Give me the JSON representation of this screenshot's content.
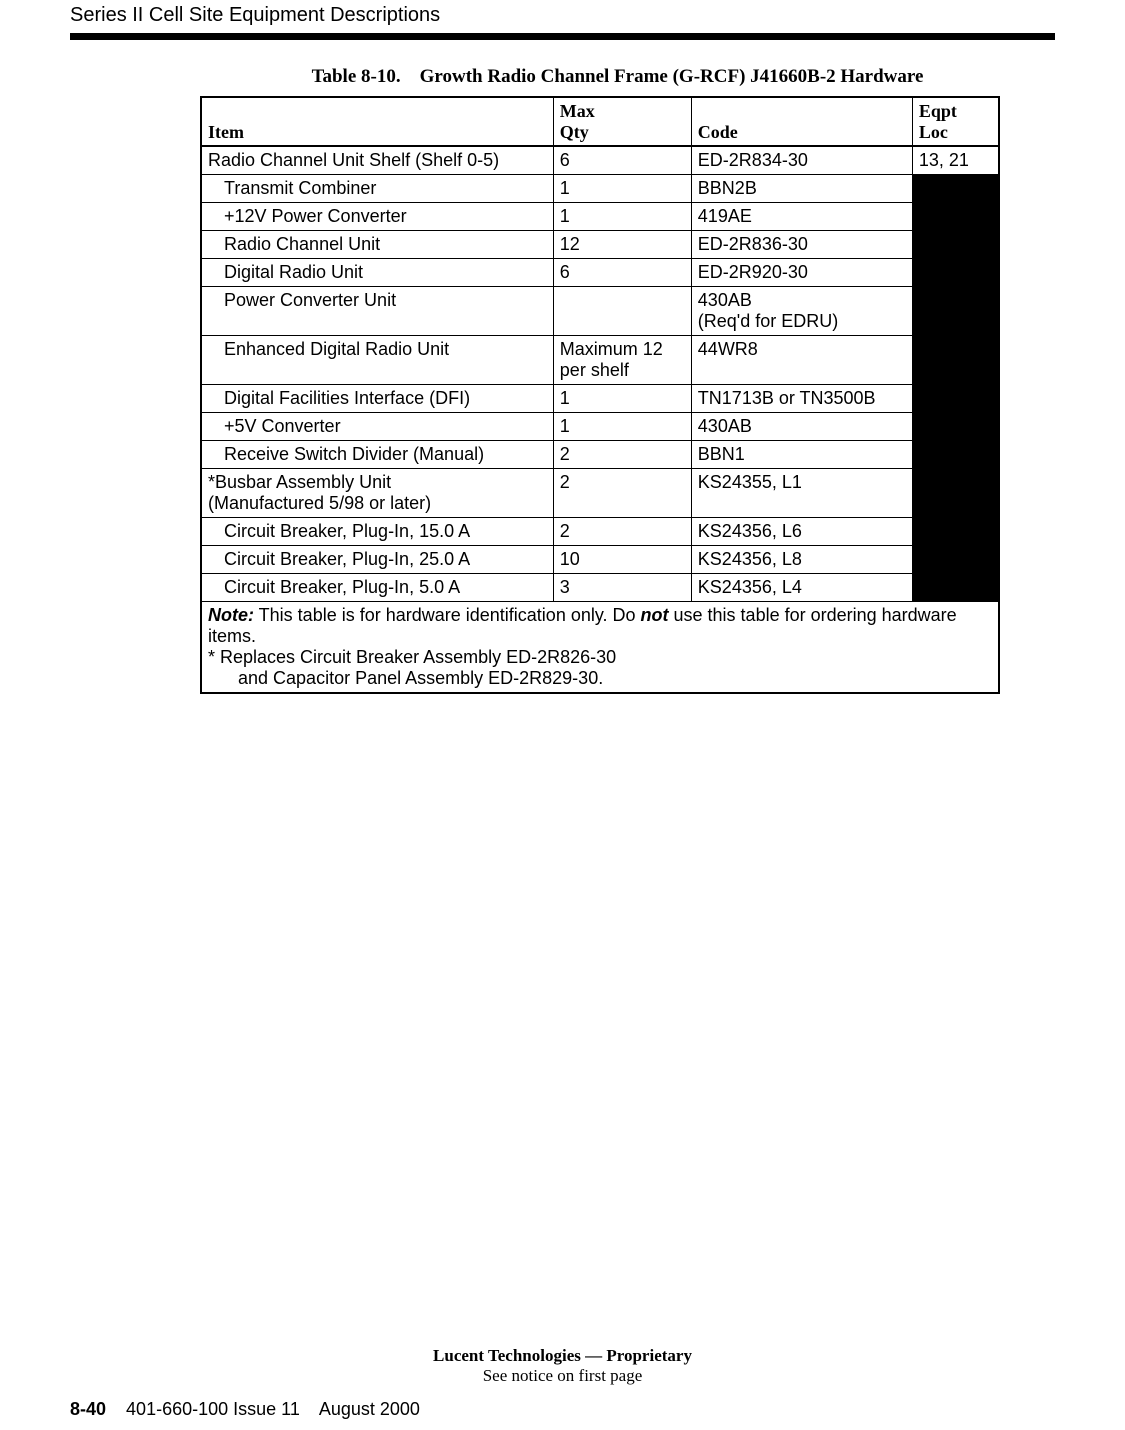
{
  "header": {
    "section_title": "Series II Cell Site Equipment Descriptions"
  },
  "table": {
    "caption_label": "Table 8-10.",
    "caption_title": "Growth Radio Channel Frame (G-RCF) J41660B-2 Hardware",
    "columns": {
      "item": "Item",
      "max": "Max",
      "qty": "Qty",
      "code": "Code",
      "eqpt": "Eqpt",
      "loc": "Loc"
    },
    "rows": [
      {
        "item": "Radio Channel Unit Shelf (Shelf 0-5)",
        "indent": false,
        "qty": "6",
        "code": "ED-2R834-30",
        "loc": "13, 21",
        "black": false
      },
      {
        "item": "Transmit Combiner",
        "indent": true,
        "qty": "1",
        "code": "BBN2B",
        "loc": "",
        "black": true
      },
      {
        "item": "+12V Power Converter",
        "indent": true,
        "qty": "1",
        "code": "419AE",
        "loc": "",
        "black": true
      },
      {
        "item": "Radio Channel Unit",
        "indent": true,
        "qty": "12",
        "code": "ED-2R836-30",
        "loc": "",
        "black": true
      },
      {
        "item": "Digital Radio Unit",
        "indent": true,
        "qty": "6",
        "code": "ED-2R920-30",
        "loc": "",
        "black": true
      },
      {
        "item": "Power Converter Unit",
        "indent": true,
        "qty": "",
        "code": "430AB\n(Req'd for EDRU)",
        "loc": "",
        "black": true
      },
      {
        "item": "Enhanced Digital Radio Unit",
        "indent": true,
        "qty": "Maximum 12 per shelf",
        "code": "44WR8",
        "loc": "",
        "black": true
      },
      {
        "item": "Digital Facilities Interface (DFI)",
        "indent": true,
        "qty": "1",
        "code": "TN1713B or TN3500B",
        "loc": "",
        "black": true
      },
      {
        "item": "+5V Converter",
        "indent": true,
        "qty": "1",
        "code": "430AB",
        "loc": "",
        "black": true
      },
      {
        "item": "Receive Switch Divider (Manual)",
        "indent": true,
        "qty": "2",
        "code": "BBN1",
        "loc": "",
        "black": true
      },
      {
        "item": "*Busbar Assembly Unit\n(Manufactured 5/98 or later)",
        "indent": false,
        "qty": "2",
        "code": "KS24355, L1",
        "loc": "",
        "black": true
      },
      {
        "item": "Circuit Breaker, Plug-In, 15.0 A",
        "indent": true,
        "qty": "2",
        "code": "KS24356, L6",
        "loc": "",
        "black": true
      },
      {
        "item": "Circuit Breaker, Plug-In, 25.0 A",
        "indent": true,
        "qty": "10",
        "code": "KS24356, L8",
        "loc": "",
        "black": true
      },
      {
        "item": "Circuit Breaker, Plug-In,  5.0 A",
        "indent": true,
        "qty": "3",
        "code": "KS24356, L4",
        "loc": "",
        "black": true
      }
    ],
    "note": {
      "label": "Note:",
      "text1": " This table is for hardware identification only. Do ",
      "not": "not",
      "text2": " use this table for ordering hardware items.",
      "line2": "* Replaces Circuit Breaker Assembly ED-2R826-30",
      "line3": "      and Capacitor Panel Assembly ED-2R829-30."
    }
  },
  "footer": {
    "line1": "Lucent Technologies — Proprietary",
    "line2": "See notice on first page",
    "page_num": "8-40",
    "doc_id": "401-660-100 Issue 11",
    "date": "August 2000"
  }
}
